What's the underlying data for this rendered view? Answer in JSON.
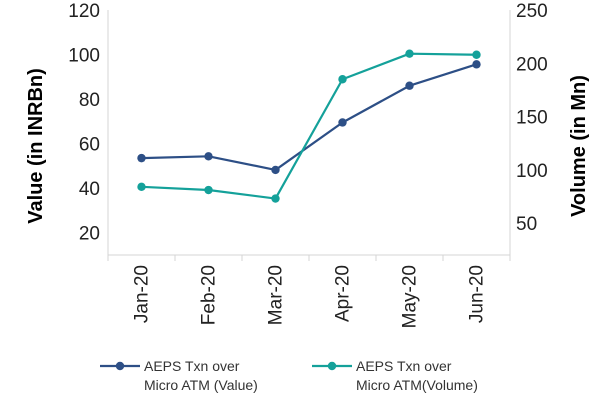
{
  "chart_data": {
    "type": "line",
    "title": "",
    "categories": [
      "Jan-20",
      "Feb-20",
      "Mar-20",
      "Apr-20",
      "May-20",
      "Jun-20"
    ],
    "y_left": {
      "label": "Value (in INRBn)",
      "ticks": [
        20,
        40,
        60,
        80,
        100,
        120
      ],
      "range": [
        10,
        120
      ]
    },
    "y_right": {
      "label": "Volume (in Mn)",
      "ticks": [
        50,
        100,
        150,
        200,
        250
      ],
      "range": [
        20,
        250
      ]
    },
    "series": [
      {
        "name": "AEPS Txn over Micro ATM (Value)",
        "legend_lines": [
          "AEPS Txn over",
          "Micro ATM (Value)"
        ],
        "axis": "left",
        "color": "#2d4f86",
        "values": [
          53.5,
          54.3,
          48.2,
          69.5,
          86,
          95.6
        ]
      },
      {
        "name": "AEPS Txn over Micro ATM(Volume)",
        "legend_lines": [
          "AEPS Txn over",
          "Micro ATM(Volume)"
        ],
        "axis": "right",
        "color": "#14a19a",
        "values": [
          84,
          81,
          73,
          185,
          209,
          208
        ]
      }
    ],
    "grid": false,
    "legend_position": "bottom"
  }
}
